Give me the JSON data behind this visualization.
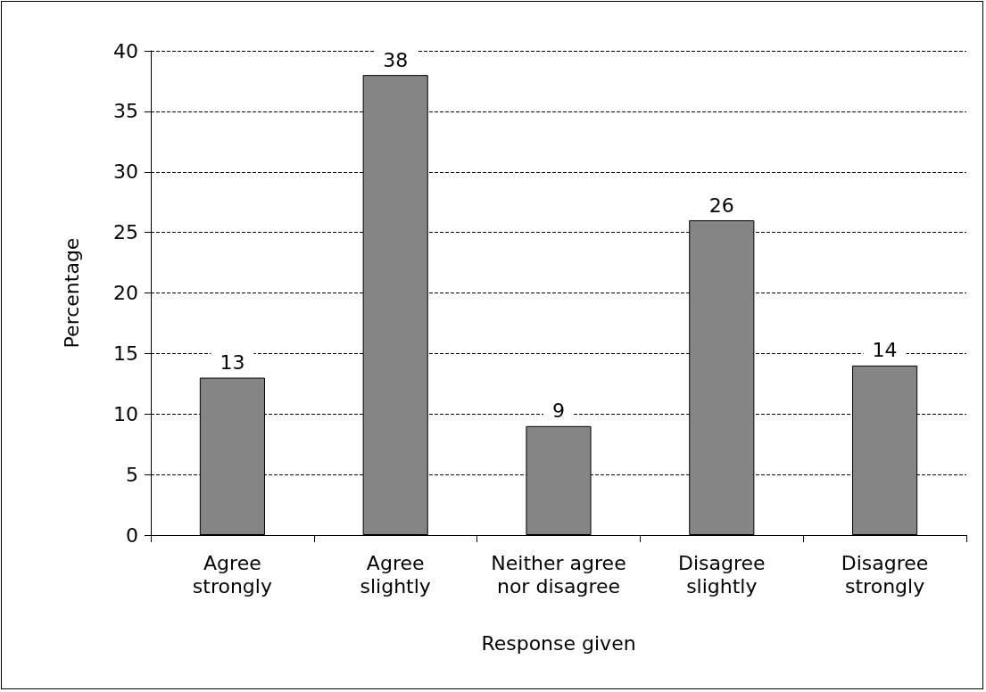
{
  "chart_data": {
    "type": "bar",
    "xlabel": "Response given",
    "ylabel": "Percentage",
    "categories": [
      "Agree strongly",
      "Agree slightly",
      "Neither agree nor disagree",
      "Disagree slightly",
      "Disagree strongly"
    ],
    "values": [
      13,
      38,
      9,
      26,
      14
    ],
    "color": "#858585",
    "ylim": [
      0,
      40
    ],
    "yticks": [
      0,
      5,
      10,
      15,
      20,
      25,
      30,
      35,
      40
    ],
    "grid": "y",
    "data_labels": true
  }
}
